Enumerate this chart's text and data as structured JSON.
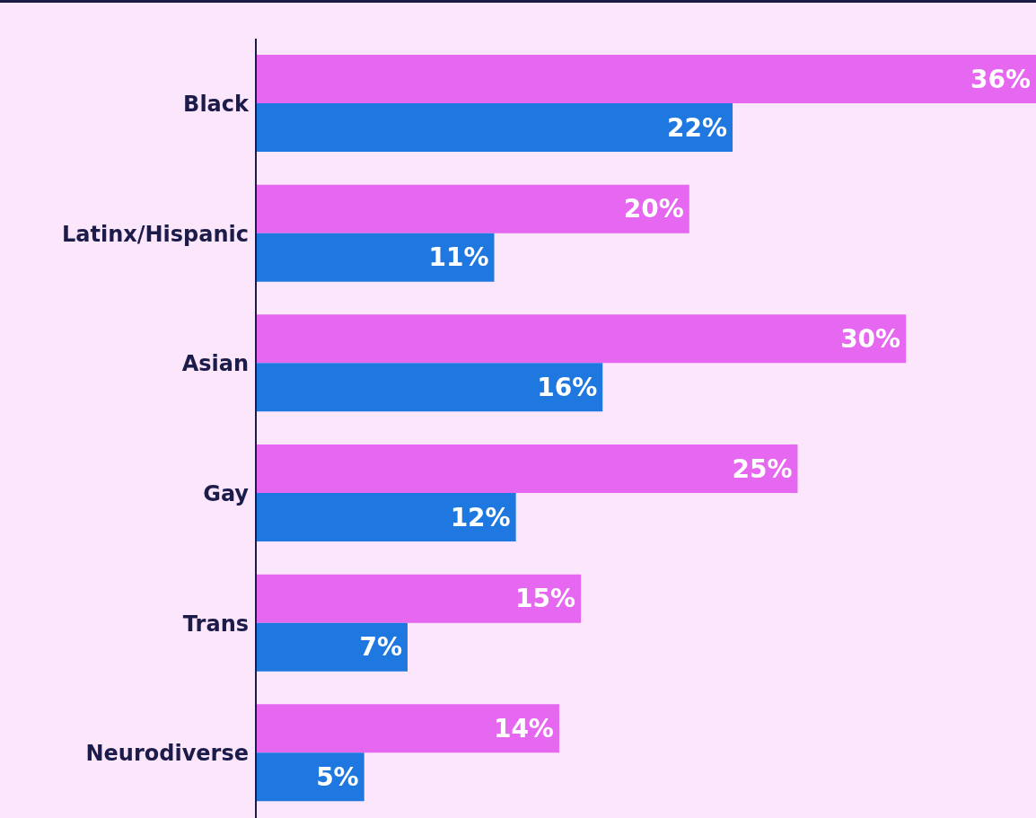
{
  "chart_data": {
    "type": "bar",
    "orientation": "horizontal",
    "categories": [
      "Black",
      "Latinx/Hispanic",
      "Asian",
      "Gay",
      "Trans",
      "Neurodiverse"
    ],
    "series": [
      {
        "color": "#e667f0",
        "values": [
          36,
          20,
          30,
          25,
          15,
          14
        ],
        "value_labels": [
          "36%",
          "20%",
          "30%",
          "25%",
          "15%",
          "14%"
        ]
      },
      {
        "color": "#1f78e0",
        "values": [
          22,
          11,
          16,
          12,
          7,
          5
        ],
        "value_labels": [
          "22%",
          "11%",
          "16%",
          "12%",
          "7%",
          "5%"
        ]
      }
    ]
  }
}
